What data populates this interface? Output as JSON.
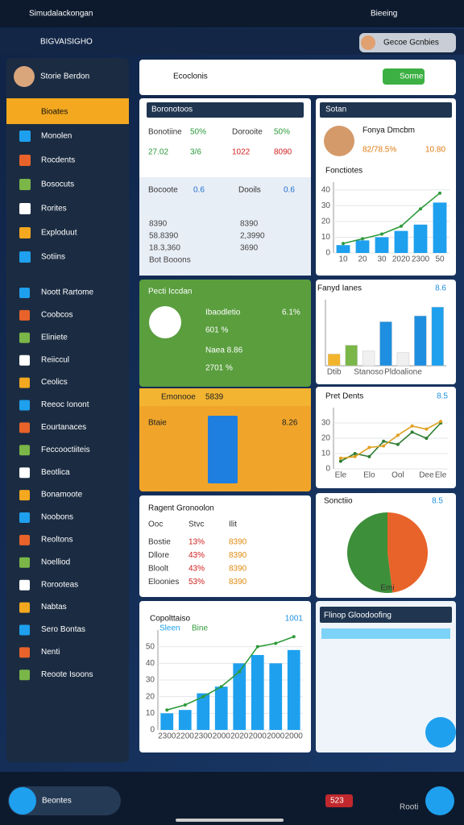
{
  "app_bar": {
    "title": "Simudalackongan",
    "search": "Bieeing"
  },
  "sub_bar": {
    "title": "BIGVAISIGHO",
    "user": "Gecoe Gcnbies"
  },
  "sidebar": {
    "profile": "Storie Berdon",
    "menu": [
      "Bioates",
      "Monolen",
      "Rocdents",
      "Bosocuts",
      "Rorites",
      "Exploduut",
      "Sotiins"
    ],
    "links": [
      "Noott Rartome",
      "Coobcos",
      "Eliniete",
      "Reiiccul",
      "Ceolics",
      "Reeoc Ionont",
      "Eourtanaces",
      "Feccooctiiteis",
      "Beotlica",
      "Bonamoote",
      "Noobons",
      "Reoltons",
      "Noelliod",
      "Rorooteas",
      "Nabtas",
      "Sero Bontas",
      "Nenti",
      "Reoote Isoons"
    ]
  },
  "top_card": {
    "title": "Ecoclonis",
    "button": "Sorme"
  },
  "stats_card": {
    "title": "Boronotoos",
    "labels": [
      "Bonotiine",
      "50%",
      "Dorooite",
      "50%"
    ],
    "values": [
      "27.02",
      "3/6",
      "1022",
      "8090"
    ],
    "lower": [
      "Bocoote",
      "0.6",
      "Dooils",
      "0.6"
    ],
    "figures": [
      "8390",
      "8390",
      "58.8390",
      "2,3990",
      "18.3,360",
      "3690",
      "Bot Booons"
    ]
  },
  "profile_card": {
    "title": "Sotan",
    "name": "Fonya Dmcbm",
    "stat": "82/78.5%",
    "value": "10.80"
  },
  "trend_chart": {
    "type": "bar",
    "title": "Fonctiotes",
    "categories": [
      "10",
      "20",
      "30",
      "2020",
      "2300",
      "50"
    ],
    "ylim": [
      0,
      45
    ],
    "yticks": [
      0,
      10,
      20,
      30,
      40
    ],
    "series": [
      {
        "name": "Bars",
        "type": "bar",
        "color": "#1ea0ee",
        "values": [
          5,
          8,
          10,
          14,
          18,
          32
        ]
      },
      {
        "name": "Trend",
        "type": "line",
        "color": "#2e9a3a",
        "values": [
          6,
          9,
          12,
          17,
          28,
          38
        ]
      }
    ]
  },
  "green_card": {
    "title": "Pecti Iccdan",
    "label": "Ibaodletio",
    "badge": "6.1%",
    "big1": "601 %",
    "sub": "Naea 8.86",
    "big2": "2701 %"
  },
  "orange_card": {
    "title": "Emonooe",
    "value": "5839",
    "label": "Btaie",
    "badge": "8.26"
  },
  "bars_chart": {
    "type": "bar",
    "title": "Fanyd Ianes",
    "badge": "8.6",
    "categories": [
      "Dtib",
      null,
      "Stanoso",
      null,
      "Pldoalione",
      null,
      null
    ],
    "ylim": [
      0,
      45
    ],
    "colors": [
      "#f2b42a",
      "#7ab648",
      "#f0f0f0",
      "#1e8fe0",
      "#f0f0f0",
      "#1e8fe0",
      "#1ea0ee"
    ],
    "series": [
      {
        "name": "Fanyd",
        "type": "bar",
        "color": "#1e8fe0",
        "values": [
          8,
          14,
          10,
          30,
          9,
          34,
          40
        ]
      }
    ]
  },
  "line_chart": {
    "type": "line",
    "title": "Pret Dents",
    "badge": "8.5",
    "categories": [
      "Ele",
      null,
      "Elo",
      null,
      "Ool",
      null,
      "Dee",
      "Ele"
    ],
    "ylim": [
      0,
      40
    ],
    "yticks": [
      0,
      10,
      20,
      30
    ],
    "series": [
      {
        "name": "A",
        "type": "line",
        "color": "#2e7d32",
        "values": [
          5,
          10,
          8,
          18,
          16,
          24,
          20,
          30
        ]
      },
      {
        "name": "B",
        "type": "line",
        "color": "#e0a020",
        "values": [
          7,
          8,
          14,
          15,
          22,
          28,
          26,
          31
        ]
      }
    ]
  },
  "pie_chart": {
    "type": "pie",
    "title": "Sonctiio",
    "badge": "8.5",
    "label": "Emi",
    "values": [
      48,
      52
    ],
    "colors": [
      "#e8632a",
      "#3d8f3a"
    ]
  },
  "table_card": {
    "title": "Ragent Gronoolon",
    "header": [
      "Ooc",
      "Stvc",
      "Ilit"
    ],
    "rows": [
      [
        "Bostie",
        "13%",
        "8390"
      ],
      [
        "Dllore",
        "43%",
        "8390"
      ],
      [
        "Bloolt",
        "43%",
        "8390"
      ],
      [
        "Eloonies",
        "53%",
        "8390"
      ]
    ]
  },
  "bottom_chart": {
    "type": "bar",
    "title": "Copolttaiso",
    "badge": "1001",
    "categories": [
      "2300",
      "2200",
      "2300",
      "2000",
      "2020",
      "2000",
      "2000",
      "2000"
    ],
    "ylim": [
      0,
      60
    ],
    "yticks": [
      0,
      10,
      20,
      30,
      40,
      50
    ],
    "series": [
      {
        "name": "Sleen",
        "type": "bar",
        "color": "#1ea0ee",
        "values": [
          10,
          12,
          22,
          26,
          40,
          45,
          40,
          48
        ]
      },
      {
        "name": "Bine",
        "type": "line",
        "color": "#2e9a3a",
        "values": [
          12,
          15,
          20,
          26,
          35,
          50,
          52,
          56
        ]
      }
    ]
  },
  "flinop_card": {
    "title": "Flinop Gloodoofing"
  },
  "bottom_bar": {
    "select": "Beontes",
    "badge": "523",
    "label": "Rooti"
  }
}
